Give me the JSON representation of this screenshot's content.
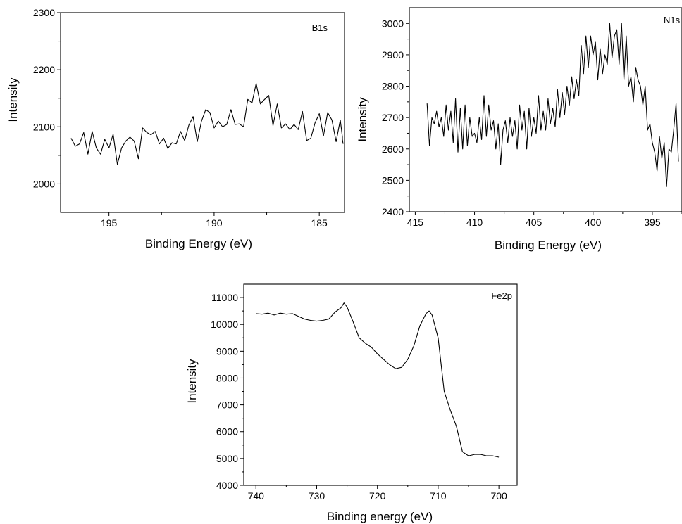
{
  "chart_data": [
    {
      "type": "line",
      "annotation": "B1s",
      "xlabel": "Binding Energy (eV)",
      "ylabel": "Intensity",
      "xlim": [
        197.3,
        183.8
      ],
      "ylim": [
        1950,
        2300
      ],
      "x_ticks": [
        195,
        190,
        185
      ],
      "y_ticks": [
        2000,
        2100,
        2200,
        2300
      ],
      "grid": false,
      "series": [
        {
          "x": [
            196.8,
            196.6,
            196.4,
            196.2,
            196.0,
            195.8,
            195.6,
            195.4,
            195.2,
            195.0,
            194.8,
            194.6,
            194.4,
            194.2,
            194.0,
            193.8,
            193.6,
            193.4,
            193.2,
            193.0,
            192.8,
            192.6,
            192.4,
            192.2,
            192.0,
            191.8,
            191.6,
            191.4,
            191.2,
            191.0,
            190.8,
            190.6,
            190.4,
            190.2,
            190.0,
            189.8,
            189.6,
            189.4,
            189.2,
            189.0,
            188.8,
            188.6,
            188.4,
            188.2,
            188.0,
            187.8,
            187.6,
            187.4,
            187.2,
            187.0,
            186.8,
            186.6,
            186.4,
            186.2,
            186.0,
            185.8,
            185.6,
            185.4,
            185.2,
            185.0,
            184.8,
            184.6,
            184.4,
            184.2,
            184.0,
            183.9
          ],
          "y": [
            2080,
            2066,
            2070,
            2090,
            2052,
            2092,
            2063,
            2052,
            2078,
            2063,
            2087,
            2034,
            2063,
            2075,
            2082,
            2075,
            2044,
            2098,
            2090,
            2086,
            2092,
            2070,
            2080,
            2062,
            2072,
            2070,
            2092,
            2076,
            2103,
            2118,
            2074,
            2110,
            2130,
            2125,
            2098,
            2110,
            2100,
            2104,
            2130,
            2104,
            2105,
            2100,
            2148,
            2142,
            2176,
            2140,
            2148,
            2155,
            2102,
            2140,
            2098,
            2105,
            2095,
            2104,
            2095,
            2127,
            2076,
            2080,
            2107,
            2123,
            2084,
            2125,
            2112,
            2074,
            2112,
            2082
          ],
          "x_extra": [
            183.9,
            183.8
          ],
          "y_extra": [
            2078,
            2070
          ]
        }
      ]
    },
    {
      "type": "line",
      "annotation": "N1s",
      "xlabel": "Binding Energy (eV)",
      "ylabel": "Intensity",
      "xlim": [
        415.5,
        392.5
      ],
      "ylim": [
        2400,
        3050
      ],
      "x_ticks": [
        415,
        410,
        405,
        400,
        395
      ],
      "y_ticks": [
        2400,
        2500,
        2600,
        2700,
        2800,
        2900,
        3000
      ],
      "grid": false,
      "series": [
        {
          "x": [
            414.0,
            413.8,
            413.6,
            413.4,
            413.2,
            413.0,
            412.8,
            412.6,
            412.4,
            412.2,
            412.0,
            411.8,
            411.6,
            411.4,
            411.2,
            411.0,
            410.8,
            410.6,
            410.4,
            410.2,
            410.0,
            409.8,
            409.6,
            409.4,
            409.2,
            409.0,
            408.8,
            408.6,
            408.4,
            408.2,
            408.0,
            407.8,
            407.6,
            407.4,
            407.2,
            407.0,
            406.8,
            406.6,
            406.4,
            406.2,
            406.0,
            405.8,
            405.6,
            405.4,
            405.2,
            405.0,
            404.8,
            404.6,
            404.4,
            404.2,
            404.0,
            403.8,
            403.6,
            403.4,
            403.2,
            403.0,
            402.8,
            402.6,
            402.4,
            402.2,
            402.0,
            401.8,
            401.6,
            401.4,
            401.2,
            401.0,
            400.8,
            400.6,
            400.4,
            400.2,
            400.0,
            399.8,
            399.6,
            399.4,
            399.2,
            399.0,
            398.8,
            398.6,
            398.4,
            398.2,
            398.0,
            397.8,
            397.6,
            397.4,
            397.2,
            397.0,
            396.8,
            396.6,
            396.4,
            396.2,
            396.0,
            395.8,
            395.6,
            395.4,
            395.2,
            395.0,
            394.8,
            394.6,
            394.4,
            394.2,
            394.0,
            393.8,
            393.6,
            393.4
          ],
          "y": [
            2745,
            2610,
            2700,
            2680,
            2720,
            2670,
            2700,
            2640,
            2740,
            2660,
            2720,
            2620,
            2760,
            2590,
            2730,
            2600,
            2740,
            2610,
            2700,
            2640,
            2650,
            2620,
            2700,
            2630,
            2770,
            2640,
            2740,
            2660,
            2690,
            2600,
            2680,
            2550,
            2660,
            2690,
            2620,
            2700,
            2640,
            2690,
            2600,
            2740,
            2660,
            2720,
            2600,
            2730,
            2640,
            2700,
            2650,
            2770,
            2660,
            2720,
            2660,
            2760,
            2680,
            2730,
            2670,
            2790,
            2700,
            2780,
            2710,
            2800,
            2740,
            2830,
            2760,
            2820,
            2770,
            2930,
            2840,
            2960,
            2860,
            2960,
            2900,
            2940,
            2820,
            2920,
            2840,
            2900,
            2870,
            3000,
            2890,
            2960,
            2980,
            2870,
            3000,
            2820,
            2960,
            2800,
            2830,
            2750,
            2860,
            2820,
            2800,
            2740,
            2800,
            2660,
            2680,
            2620,
            2590,
            2530,
            2640,
            2570,
            2620,
            2480,
            2600,
            2590
          ],
          "x_extra": [
            393.2,
            393.0,
            392.8
          ],
          "y_extra": [
            2660,
            2745,
            2560
          ]
        }
      ]
    },
    {
      "type": "line",
      "annotation": "Fe2p",
      "xlabel": "Binding energy (eV)",
      "ylabel": "Intensity",
      "xlim": [
        742,
        697
      ],
      "ylim": [
        4000,
        11500
      ],
      "x_ticks": [
        740,
        730,
        720,
        710,
        700
      ],
      "y_ticks": [
        4000,
        5000,
        6000,
        7000,
        8000,
        9000,
        10000,
        11000
      ],
      "grid": false,
      "series": [
        {
          "x": [
            740,
            739,
            738,
            737,
            736,
            735,
            734,
            733,
            732,
            731,
            730,
            729,
            728,
            727,
            726,
            725.5,
            725,
            724,
            723,
            722,
            721,
            720,
            719,
            718,
            717,
            716,
            715,
            714,
            713,
            712,
            711.5,
            711,
            710,
            709,
            708,
            707,
            706,
            705,
            704,
            703,
            702,
            701,
            700
          ],
          "y": [
            10400,
            10380,
            10420,
            10350,
            10420,
            10380,
            10400,
            10300,
            10200,
            10150,
            10120,
            10150,
            10200,
            10450,
            10620,
            10800,
            10650,
            10100,
            9500,
            9300,
            9150,
            8900,
            8700,
            8500,
            8350,
            8400,
            8700,
            9200,
            9950,
            10400,
            10500,
            10350,
            9500,
            7500,
            6800,
            6200,
            5250,
            5100,
            5150,
            5150,
            5100,
            5100,
            5050
          ]
        }
      ]
    }
  ]
}
